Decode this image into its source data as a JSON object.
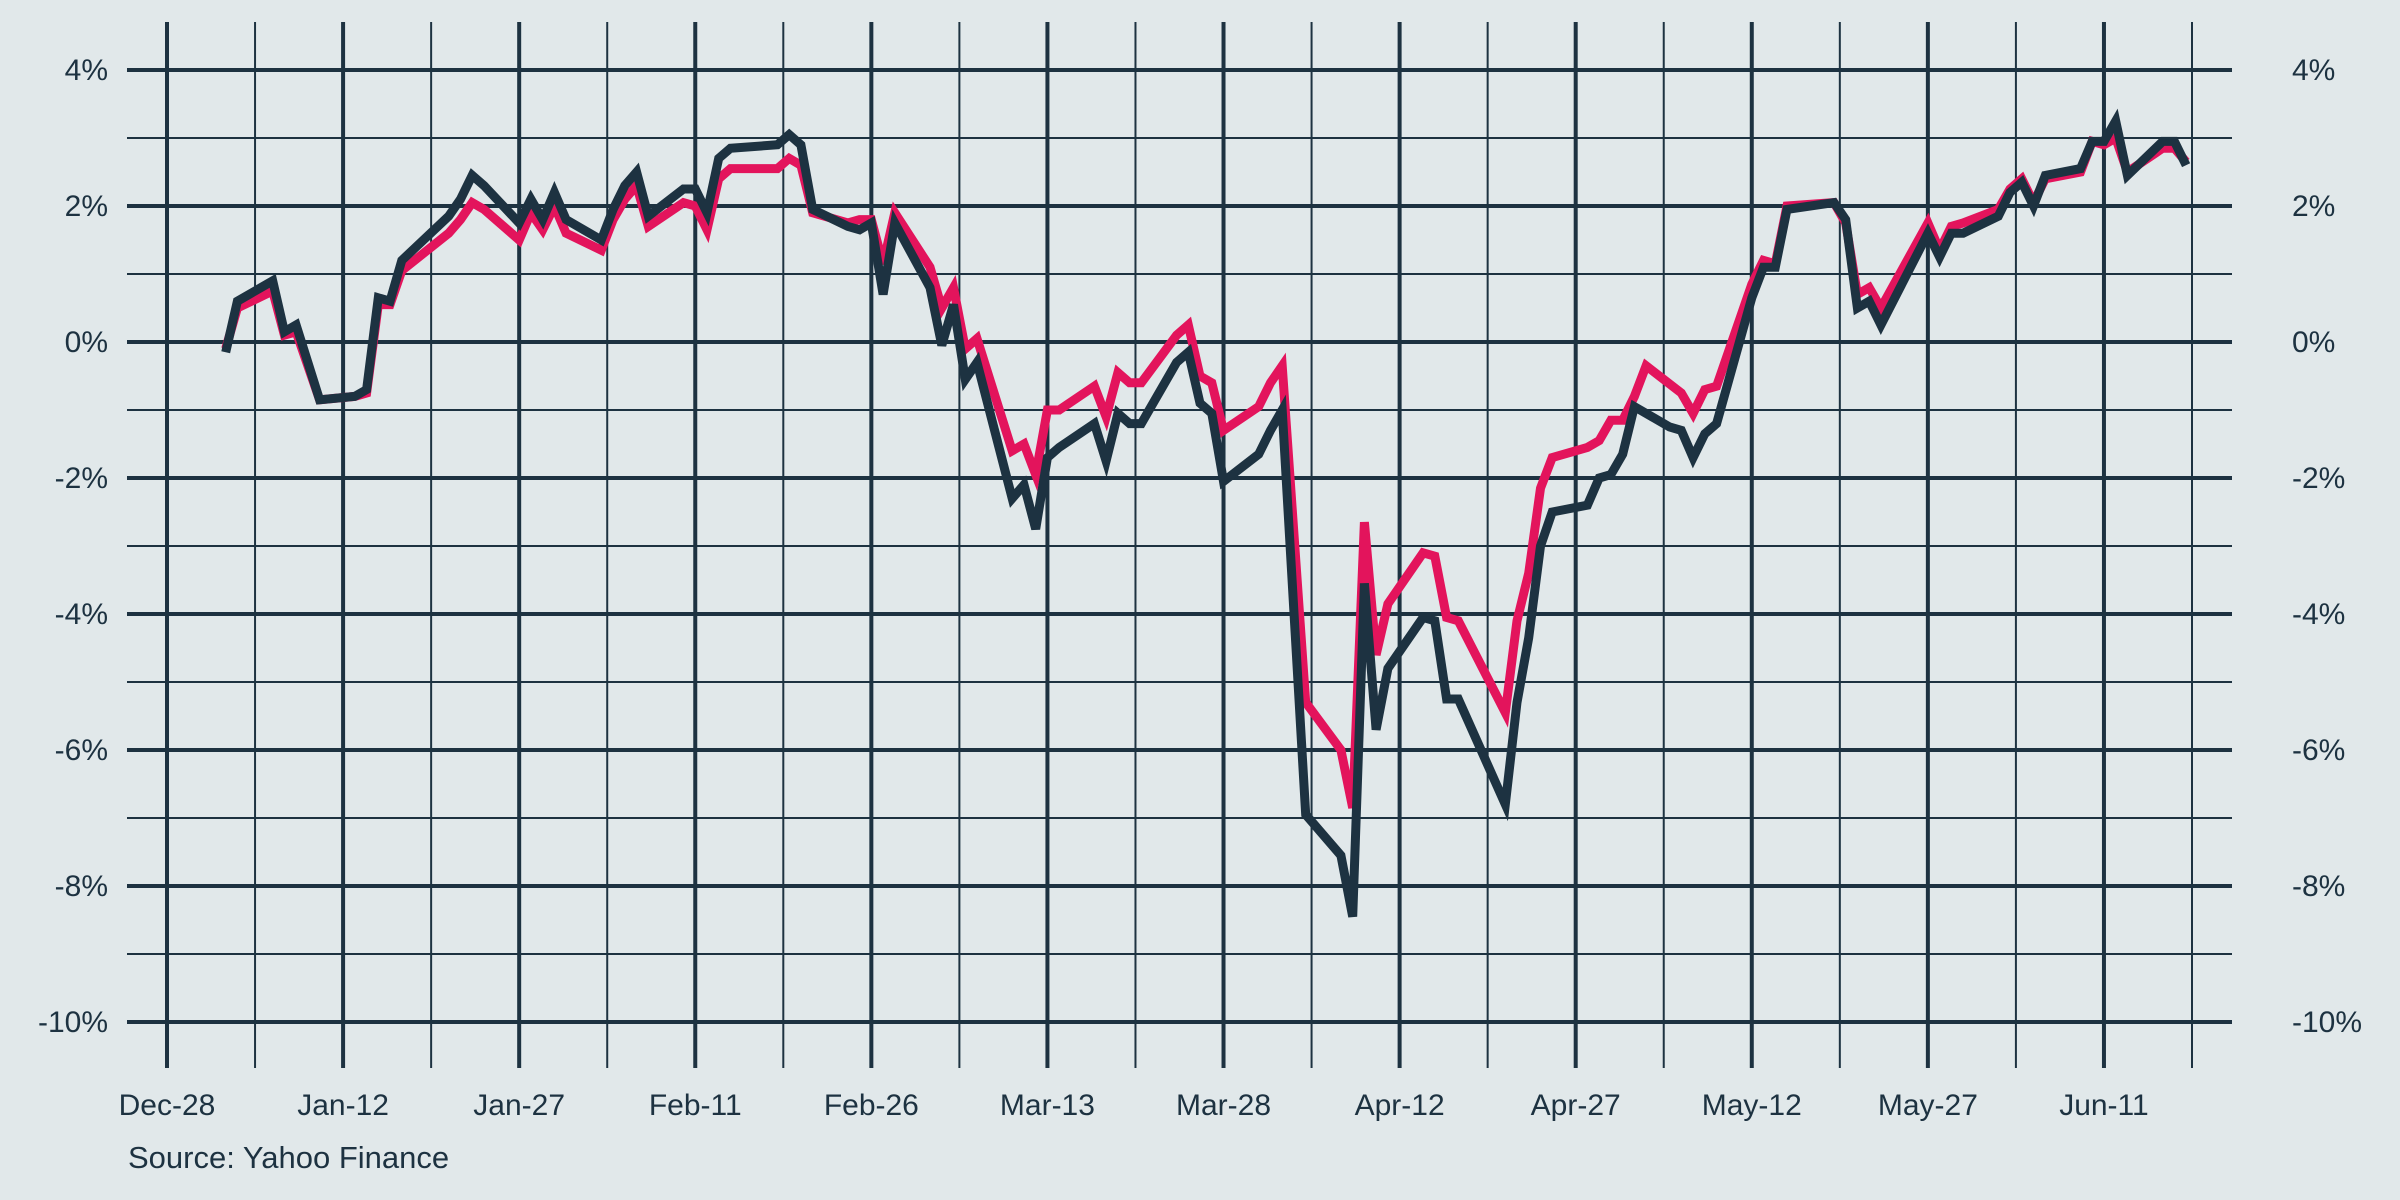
{
  "chart_data": {
    "type": "line",
    "title": "",
    "xlabel": "",
    "ylabel": "",
    "source": "Source: Yahoo Finance",
    "ylim": [
      -10,
      4
    ],
    "yticks": [
      4,
      2,
      0,
      -2,
      -4,
      -6,
      -8,
      -10
    ],
    "ytick_labels": [
      "4%",
      "2%",
      "0%",
      "-2%",
      "-4%",
      "-6%",
      "-8%",
      "-10%"
    ],
    "xlim": [
      "2024-12-28",
      "2025-06-25"
    ],
    "xticks": [
      "2024-12-28",
      "2025-01-12",
      "2025-01-27",
      "2025-02-11",
      "2025-02-26",
      "2025-03-13",
      "2025-03-28",
      "2025-04-12",
      "2025-04-27",
      "2025-05-12",
      "2025-05-27",
      "2025-06-11"
    ],
    "xtick_labels": [
      "Dec-28",
      "Jan-12",
      "Jan-27",
      "Feb-11",
      "Feb-26",
      "Mar-13",
      "Mar-28",
      "Apr-12",
      "Apr-27",
      "May-12",
      "May-27",
      "Jun-11"
    ],
    "grid": true,
    "colors": {
      "background": "#e1e8ea",
      "grid": "#1d3241",
      "series_pink": "#e3145c",
      "series_navy": "#1d3241"
    },
    "series": [
      {
        "name": "",
        "color": "#e3145c",
        "points": [
          [
            "2025-01-02",
            -0.1
          ],
          [
            "2025-01-03",
            0.5
          ],
          [
            "2025-01-06",
            0.75
          ],
          [
            "2025-01-07",
            0.1
          ],
          [
            "2025-01-08",
            0.15
          ],
          [
            "2025-01-10",
            -0.85
          ],
          [
            "2025-01-13",
            -0.8
          ],
          [
            "2025-01-14",
            -0.75
          ],
          [
            "2025-01-15",
            0.55
          ],
          [
            "2025-01-16",
            0.55
          ],
          [
            "2025-01-17",
            1.05
          ],
          [
            "2025-01-21",
            1.6
          ],
          [
            "2025-01-22",
            1.8
          ],
          [
            "2025-01-23",
            2.05
          ],
          [
            "2025-01-24",
            1.95
          ],
          [
            "2025-01-27",
            1.5
          ],
          [
            "2025-01-28",
            1.9
          ],
          [
            "2025-01-29",
            1.65
          ],
          [
            "2025-01-30",
            2.0
          ],
          [
            "2025-01-31",
            1.6
          ],
          [
            "2025-02-03",
            1.35
          ],
          [
            "2025-02-04",
            1.8
          ],
          [
            "2025-02-05",
            2.1
          ],
          [
            "2025-02-06",
            2.3
          ],
          [
            "2025-02-07",
            1.7
          ],
          [
            "2025-02-10",
            2.05
          ],
          [
            "2025-02-11",
            2.0
          ],
          [
            "2025-02-12",
            1.65
          ],
          [
            "2025-02-13",
            2.4
          ],
          [
            "2025-02-14",
            2.55
          ],
          [
            "2025-02-18",
            2.55
          ],
          [
            "2025-02-19",
            2.7
          ],
          [
            "2025-02-20",
            2.6
          ],
          [
            "2025-02-21",
            1.9
          ],
          [
            "2025-02-24",
            1.75
          ],
          [
            "2025-02-25",
            1.8
          ],
          [
            "2025-02-26",
            1.8
          ],
          [
            "2025-02-27",
            1.15
          ],
          [
            "2025-02-28",
            1.9
          ],
          [
            "2025-03-03",
            1.1
          ],
          [
            "2025-03-04",
            0.5
          ],
          [
            "2025-03-05",
            0.8
          ],
          [
            "2025-03-06",
            -0.1
          ],
          [
            "2025-03-07",
            0.05
          ],
          [
            "2025-03-10",
            -1.6
          ],
          [
            "2025-03-11",
            -1.5
          ],
          [
            "2025-03-12",
            -1.95
          ],
          [
            "2025-03-13",
            -1.0
          ],
          [
            "2025-03-14",
            -1.0
          ],
          [
            "2025-03-17",
            -0.65
          ],
          [
            "2025-03-18",
            -1.1
          ],
          [
            "2025-03-19",
            -0.45
          ],
          [
            "2025-03-20",
            -0.6
          ],
          [
            "2025-03-21",
            -0.6
          ],
          [
            "2025-03-24",
            0.1
          ],
          [
            "2025-03-25",
            0.25
          ],
          [
            "2025-03-26",
            -0.5
          ],
          [
            "2025-03-27",
            -0.6
          ],
          [
            "2025-03-28",
            -1.3
          ],
          [
            "2025-03-31",
            -0.95
          ],
          [
            "2025-04-01",
            -0.6
          ],
          [
            "2025-04-02",
            -0.35
          ],
          [
            "2025-04-04",
            -5.3
          ],
          [
            "2025-04-07",
            -6.0
          ],
          [
            "2025-04-08",
            -6.85
          ],
          [
            "2025-04-09",
            -2.65
          ],
          [
            "2025-04-10",
            -4.6
          ],
          [
            "2025-04-11",
            -3.85
          ],
          [
            "2025-04-14",
            -3.1
          ],
          [
            "2025-04-15",
            -3.15
          ],
          [
            "2025-04-16",
            -4.05
          ],
          [
            "2025-04-17",
            -4.1
          ],
          [
            "2025-04-21",
            -5.45
          ],
          [
            "2025-04-22",
            -4.1
          ],
          [
            "2025-04-23",
            -3.4
          ],
          [
            "2025-04-24",
            -2.15
          ],
          [
            "2025-04-25",
            -1.7
          ],
          [
            "2025-04-28",
            -1.55
          ],
          [
            "2025-04-29",
            -1.45
          ],
          [
            "2025-04-30",
            -1.15
          ],
          [
            "2025-05-01",
            -1.15
          ],
          [
            "2025-05-02",
            -0.8
          ],
          [
            "2025-05-03",
            -0.35
          ],
          [
            "2025-05-06",
            -0.75
          ],
          [
            "2025-05-07",
            -1.05
          ],
          [
            "2025-05-08",
            -0.7
          ],
          [
            "2025-05-09",
            -0.65
          ],
          [
            "2025-05-12",
            0.85
          ],
          [
            "2025-05-13",
            1.2
          ],
          [
            "2025-05-14",
            1.15
          ],
          [
            "2025-05-15",
            2.0
          ],
          [
            "2025-05-19",
            2.05
          ],
          [
            "2025-05-20",
            1.75
          ],
          [
            "2025-05-21",
            0.7
          ],
          [
            "2025-05-22",
            0.8
          ],
          [
            "2025-05-23",
            0.5
          ],
          [
            "2025-05-27",
            1.75
          ],
          [
            "2025-05-28",
            1.35
          ],
          [
            "2025-05-29",
            1.7
          ],
          [
            "2025-05-30",
            1.75
          ],
          [
            "2025-06-02",
            1.95
          ],
          [
            "2025-06-03",
            2.25
          ],
          [
            "2025-06-04",
            2.4
          ],
          [
            "2025-06-05",
            2.05
          ],
          [
            "2025-06-06",
            2.4
          ],
          [
            "2025-06-09",
            2.5
          ],
          [
            "2025-06-10",
            2.95
          ],
          [
            "2025-06-11",
            2.9
          ],
          [
            "2025-06-12",
            3.0
          ],
          [
            "2025-06-13",
            2.5
          ],
          [
            "2025-06-16",
            2.85
          ],
          [
            "2025-06-17",
            2.85
          ],
          [
            "2025-06-18",
            2.65
          ]
        ]
      },
      {
        "name": "",
        "color": "#1d3241",
        "points": [
          [
            "2025-01-02",
            -0.15
          ],
          [
            "2025-01-03",
            0.6
          ],
          [
            "2025-01-06",
            0.9
          ],
          [
            "2025-01-07",
            0.15
          ],
          [
            "2025-01-08",
            0.25
          ],
          [
            "2025-01-10",
            -0.85
          ],
          [
            "2025-01-13",
            -0.8
          ],
          [
            "2025-01-14",
            -0.7
          ],
          [
            "2025-01-15",
            0.65
          ],
          [
            "2025-01-16",
            0.6
          ],
          [
            "2025-01-17",
            1.2
          ],
          [
            "2025-01-21",
            1.85
          ],
          [
            "2025-01-22",
            2.1
          ],
          [
            "2025-01-23",
            2.45
          ],
          [
            "2025-01-24",
            2.3
          ],
          [
            "2025-01-27",
            1.75
          ],
          [
            "2025-01-28",
            2.1
          ],
          [
            "2025-01-29",
            1.8
          ],
          [
            "2025-01-30",
            2.2
          ],
          [
            "2025-01-31",
            1.8
          ],
          [
            "2025-02-03",
            1.5
          ],
          [
            "2025-02-04",
            1.95
          ],
          [
            "2025-02-05",
            2.3
          ],
          [
            "2025-02-06",
            2.5
          ],
          [
            "2025-02-07",
            1.85
          ],
          [
            "2025-02-10",
            2.25
          ],
          [
            "2025-02-11",
            2.25
          ],
          [
            "2025-02-12",
            1.9
          ],
          [
            "2025-02-13",
            2.7
          ],
          [
            "2025-02-14",
            2.85
          ],
          [
            "2025-02-18",
            2.9
          ],
          [
            "2025-02-19",
            3.05
          ],
          [
            "2025-02-20",
            2.9
          ],
          [
            "2025-02-21",
            1.95
          ],
          [
            "2025-02-24",
            1.7
          ],
          [
            "2025-02-25",
            1.65
          ],
          [
            "2025-02-26",
            1.75
          ],
          [
            "2025-02-27",
            0.7
          ],
          [
            "2025-02-28",
            1.75
          ],
          [
            "2025-03-03",
            0.8
          ],
          [
            "2025-03-04",
            -0.05
          ],
          [
            "2025-03-05",
            0.55
          ],
          [
            "2025-03-06",
            -0.55
          ],
          [
            "2025-03-07",
            -0.3
          ],
          [
            "2025-03-10",
            -2.3
          ],
          [
            "2025-03-11",
            -2.1
          ],
          [
            "2025-03-12",
            -2.75
          ],
          [
            "2025-03-13",
            -1.7
          ],
          [
            "2025-03-14",
            -1.55
          ],
          [
            "2025-03-17",
            -1.2
          ],
          [
            "2025-03-18",
            -1.75
          ],
          [
            "2025-03-19",
            -1.05
          ],
          [
            "2025-03-20",
            -1.2
          ],
          [
            "2025-03-21",
            -1.2
          ],
          [
            "2025-03-24",
            -0.3
          ],
          [
            "2025-03-25",
            -0.15
          ],
          [
            "2025-03-26",
            -0.9
          ],
          [
            "2025-03-27",
            -1.05
          ],
          [
            "2025-03-28",
            -2.05
          ],
          [
            "2025-03-31",
            -1.65
          ],
          [
            "2025-04-01",
            -1.3
          ],
          [
            "2025-04-02",
            -1.0
          ],
          [
            "2025-04-04",
            -6.95
          ],
          [
            "2025-04-07",
            -7.55
          ],
          [
            "2025-04-08",
            -8.45
          ],
          [
            "2025-04-09",
            -3.55
          ],
          [
            "2025-04-10",
            -5.7
          ],
          [
            "2025-04-11",
            -4.8
          ],
          [
            "2025-04-14",
            -4.05
          ],
          [
            "2025-04-15",
            -4.1
          ],
          [
            "2025-04-16",
            -5.25
          ],
          [
            "2025-04-17",
            -5.25
          ],
          [
            "2025-04-21",
            -6.8
          ],
          [
            "2025-04-22",
            -5.3
          ],
          [
            "2025-04-23",
            -4.35
          ],
          [
            "2025-04-24",
            -3.0
          ],
          [
            "2025-04-25",
            -2.5
          ],
          [
            "2025-04-28",
            -2.4
          ],
          [
            "2025-04-29",
            -2.0
          ],
          [
            "2025-04-30",
            -1.95
          ],
          [
            "2025-05-01",
            -1.65
          ],
          [
            "2025-05-02",
            -0.95
          ],
          [
            "2025-05-05",
            -1.25
          ],
          [
            "2025-05-06",
            -1.3
          ],
          [
            "2025-05-07",
            -1.7
          ],
          [
            "2025-05-08",
            -1.35
          ],
          [
            "2025-05-09",
            -1.2
          ],
          [
            "2025-05-12",
            0.65
          ],
          [
            "2025-05-13",
            1.1
          ],
          [
            "2025-05-14",
            1.1
          ],
          [
            "2025-05-15",
            1.95
          ],
          [
            "2025-05-19",
            2.05
          ],
          [
            "2025-05-20",
            1.8
          ],
          [
            "2025-05-21",
            0.5
          ],
          [
            "2025-05-22",
            0.6
          ],
          [
            "2025-05-23",
            0.25
          ],
          [
            "2025-05-27",
            1.6
          ],
          [
            "2025-05-28",
            1.25
          ],
          [
            "2025-05-29",
            1.6
          ],
          [
            "2025-05-30",
            1.6
          ],
          [
            "2025-06-02",
            1.85
          ],
          [
            "2025-06-03",
            2.2
          ],
          [
            "2025-06-04",
            2.35
          ],
          [
            "2025-06-05",
            2.0
          ],
          [
            "2025-06-06",
            2.45
          ],
          [
            "2025-06-09",
            2.55
          ],
          [
            "2025-06-10",
            2.95
          ],
          [
            "2025-06-11",
            2.95
          ],
          [
            "2025-06-12",
            3.25
          ],
          [
            "2025-06-13",
            2.45
          ],
          [
            "2025-06-16",
            2.95
          ],
          [
            "2025-06-17",
            2.95
          ],
          [
            "2025-06-18",
            2.6
          ]
        ]
      }
    ]
  }
}
